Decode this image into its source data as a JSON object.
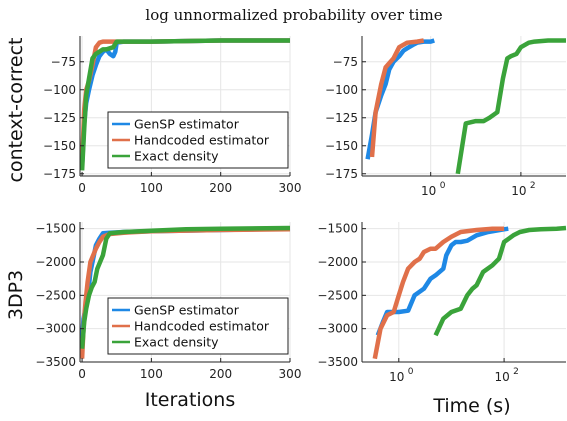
{
  "figure": {
    "title": "log unnormalized probability over time",
    "row_labels": [
      "context-correct",
      "3DP3"
    ],
    "x_labels": [
      "Iterations",
      "Time (s)"
    ]
  },
  "colors": {
    "GenSP estimator": "#1e88e5",
    "Handcoded estimator": "#e0704a",
    "Exact density": "#3aa33a"
  },
  "chart_data": [
    {
      "type": "line",
      "panel": "top-left",
      "ylabel": "context-correct",
      "xlabel": "",
      "xscale": "linear",
      "xlim": [
        -3,
        300
      ],
      "ylim": [
        -177,
        -52
      ],
      "xticks": [
        0,
        100,
        200,
        300
      ],
      "yticks": [
        -175,
        -150,
        -125,
        -100,
        -75
      ],
      "grid": true,
      "legend": {
        "position": "bottom-right",
        "entries": [
          "GenSP estimator",
          "Handcoded estimator",
          "Exact density"
        ]
      },
      "series": [
        {
          "name": "GenSP estimator",
          "x": [
            0,
            3,
            6,
            10,
            15,
            20,
            25,
            30,
            35,
            40,
            45,
            48,
            50,
            60,
            100,
            200,
            300
          ],
          "y": [
            -168,
            -130,
            -112,
            -100,
            -87,
            -78,
            -70,
            -66,
            -64,
            -68,
            -70,
            -66,
            -58,
            -57,
            -57,
            -56,
            -56
          ]
        },
        {
          "name": "Handcoded estimator",
          "x": [
            0,
            3,
            6,
            10,
            15,
            20,
            25,
            30,
            40,
            60,
            100,
            200,
            300
          ],
          "y": [
            -165,
            -118,
            -100,
            -92,
            -78,
            -62,
            -58,
            -57,
            -57,
            -57,
            -57,
            -56,
            -56
          ]
        },
        {
          "name": "Exact density",
          "x": [
            0,
            3,
            6,
            10,
            15,
            20,
            25,
            30,
            35,
            40,
            45,
            50,
            60,
            100,
            200,
            300
          ],
          "y": [
            -172,
            -135,
            -105,
            -90,
            -72,
            -68,
            -66,
            -64,
            -64,
            -63,
            -62,
            -57,
            -57,
            -57,
            -56,
            -56
          ]
        }
      ]
    },
    {
      "type": "line",
      "panel": "top-right",
      "xlabel": "",
      "xscale": "log10",
      "xlim": [
        0.03,
        1000
      ],
      "ylim": [
        -177,
        -52
      ],
      "xticks": [
        1,
        100
      ],
      "xtick_labels": [
        "10^0",
        "10^2"
      ],
      "yticks": [
        -175,
        -150,
        -125,
        -100,
        -75
      ],
      "grid": true,
      "series": [
        {
          "name": "GenSP estimator",
          "x": [
            0.04,
            0.05,
            0.06,
            0.08,
            0.1,
            0.12,
            0.15,
            0.2,
            0.25,
            0.3,
            0.4,
            0.5,
            0.7,
            1.0,
            1.2
          ],
          "y": [
            -162,
            -140,
            -120,
            -105,
            -95,
            -82,
            -75,
            -70,
            -65,
            -63,
            -60,
            -58,
            -57,
            -57,
            -56
          ]
        },
        {
          "name": "Handcoded estimator",
          "x": [
            0.05,
            0.06,
            0.08,
            0.1,
            0.15,
            0.2,
            0.3,
            0.5,
            0.7
          ],
          "y": [
            -160,
            -120,
            -95,
            -80,
            -72,
            -62,
            -58,
            -57,
            -56
          ]
        },
        {
          "name": "Exact density",
          "x": [
            4,
            6,
            10,
            15,
            20,
            30,
            40,
            50,
            60,
            80,
            100,
            150,
            200,
            400,
            1000
          ],
          "y": [
            -175,
            -130,
            -128,
            -128,
            -125,
            -120,
            -90,
            -72,
            -70,
            -68,
            -62,
            -58,
            -57,
            -56,
            -56
          ]
        }
      ]
    },
    {
      "type": "line",
      "panel": "bottom-left",
      "ylabel": "3DP3",
      "xlabel": "Iterations",
      "xscale": "linear",
      "xlim": [
        -3,
        300
      ],
      "ylim": [
        -3500,
        -1400
      ],
      "xticks": [
        0,
        100,
        200,
        300
      ],
      "yticks": [
        -3500,
        -3000,
        -2500,
        -2000,
        -1500
      ],
      "grid": true,
      "legend": {
        "position": "bottom-right",
        "entries": [
          "GenSP estimator",
          "Handcoded estimator",
          "Exact density"
        ]
      },
      "series": [
        {
          "name": "GenSP estimator",
          "x": [
            0,
            2,
            5,
            8,
            12,
            16,
            20,
            25,
            30,
            40,
            60,
            100,
            200,
            300
          ],
          "y": [
            -3150,
            -2850,
            -2700,
            -2550,
            -2150,
            -1950,
            -1750,
            -1650,
            -1570,
            -1560,
            -1550,
            -1540,
            -1520,
            -1500
          ]
        },
        {
          "name": "Handcoded estimator",
          "x": [
            0,
            2,
            5,
            8,
            12,
            16,
            20,
            25,
            30,
            40,
            60,
            100,
            200,
            300
          ],
          "y": [
            -3450,
            -3000,
            -2600,
            -2300,
            -2000,
            -1900,
            -1800,
            -1700,
            -1620,
            -1580,
            -1560,
            -1540,
            -1520,
            -1510
          ]
        },
        {
          "name": "Exact density",
          "x": [
            0,
            3,
            6,
            10,
            14,
            18,
            22,
            26,
            30,
            35,
            40,
            60,
            100,
            150,
            200,
            300
          ],
          "y": [
            -3300,
            -2900,
            -2700,
            -2500,
            -2380,
            -2300,
            -2100,
            -2000,
            -1900,
            -1650,
            -1570,
            -1550,
            -1530,
            -1510,
            -1500,
            -1490
          ]
        }
      ]
    },
    {
      "type": "line",
      "panel": "bottom-right",
      "xlabel": "Time (s)",
      "xscale": "log10",
      "xlim": [
        0.2,
        1500
      ],
      "ylim": [
        -3500,
        -1400
      ],
      "xticks": [
        1,
        100
      ],
      "xtick_labels": [
        "10^0",
        "10^2"
      ],
      "yticks": [
        -3500,
        -3000,
        -2500,
        -2000,
        -1500
      ],
      "grid": true,
      "series": [
        {
          "name": "GenSP estimator",
          "x": [
            0.4,
            0.5,
            0.6,
            0.8,
            1.0,
            1.5,
            2,
            3,
            4,
            5,
            7,
            8,
            10,
            12,
            15,
            20,
            30,
            50,
            100,
            120
          ],
          "y": [
            -3100,
            -2900,
            -2750,
            -2750,
            -2750,
            -2730,
            -2500,
            -2400,
            -2250,
            -2200,
            -2100,
            -1900,
            -1750,
            -1700,
            -1700,
            -1680,
            -1600,
            -1550,
            -1510,
            -1500
          ]
        },
        {
          "name": "Handcoded estimator",
          "x": [
            0.35,
            0.45,
            0.6,
            0.8,
            1.0,
            1.2,
            1.5,
            2,
            2.5,
            3,
            4,
            5,
            7,
            10,
            15,
            30,
            60,
            100
          ],
          "y": [
            -3450,
            -3000,
            -2800,
            -2750,
            -2500,
            -2300,
            -2100,
            -2000,
            -1950,
            -1850,
            -1800,
            -1800,
            -1700,
            -1620,
            -1550,
            -1520,
            -1500,
            -1500
          ]
        },
        {
          "name": "Exact density",
          "x": [
            5,
            7,
            10,
            15,
            20,
            25,
            30,
            40,
            60,
            80,
            100,
            150,
            200,
            300,
            500,
            1000,
            1500
          ],
          "y": [
            -3100,
            -2850,
            -2750,
            -2700,
            -2500,
            -2400,
            -2350,
            -2150,
            -2050,
            -1950,
            -1700,
            -1600,
            -1550,
            -1520,
            -1510,
            -1500,
            -1490
          ]
        }
      ]
    }
  ]
}
